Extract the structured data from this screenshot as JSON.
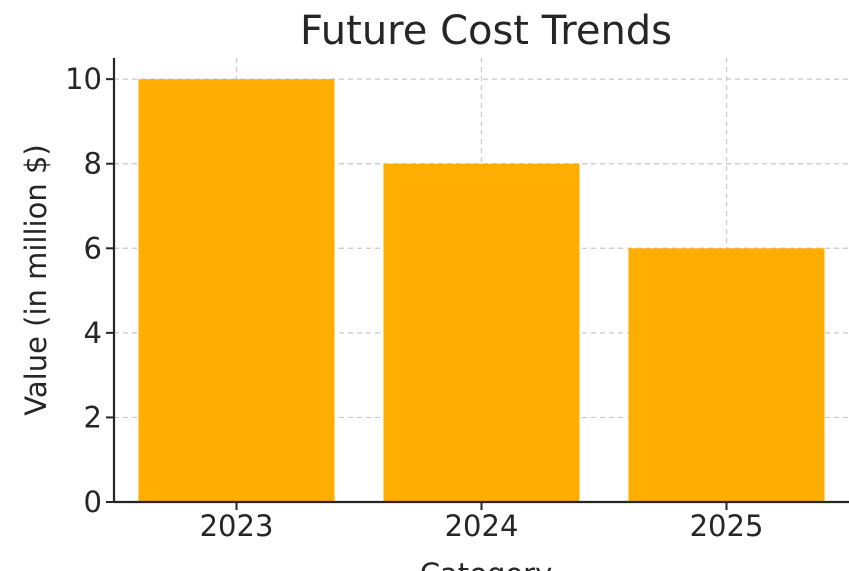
{
  "chart_data": {
    "type": "bar",
    "title": "Future Cost Trends",
    "xlabel": "Category",
    "ylabel": "Value (in million $)",
    "categories": [
      "2023",
      "2024",
      "2025"
    ],
    "values": [
      10,
      8,
      6
    ],
    "ylim": [
      0,
      10.5
    ],
    "yticks": [
      "0",
      "2",
      "4",
      "6",
      "8",
      "10"
    ],
    "bar_color": "#FFAE00",
    "grid": true
  }
}
